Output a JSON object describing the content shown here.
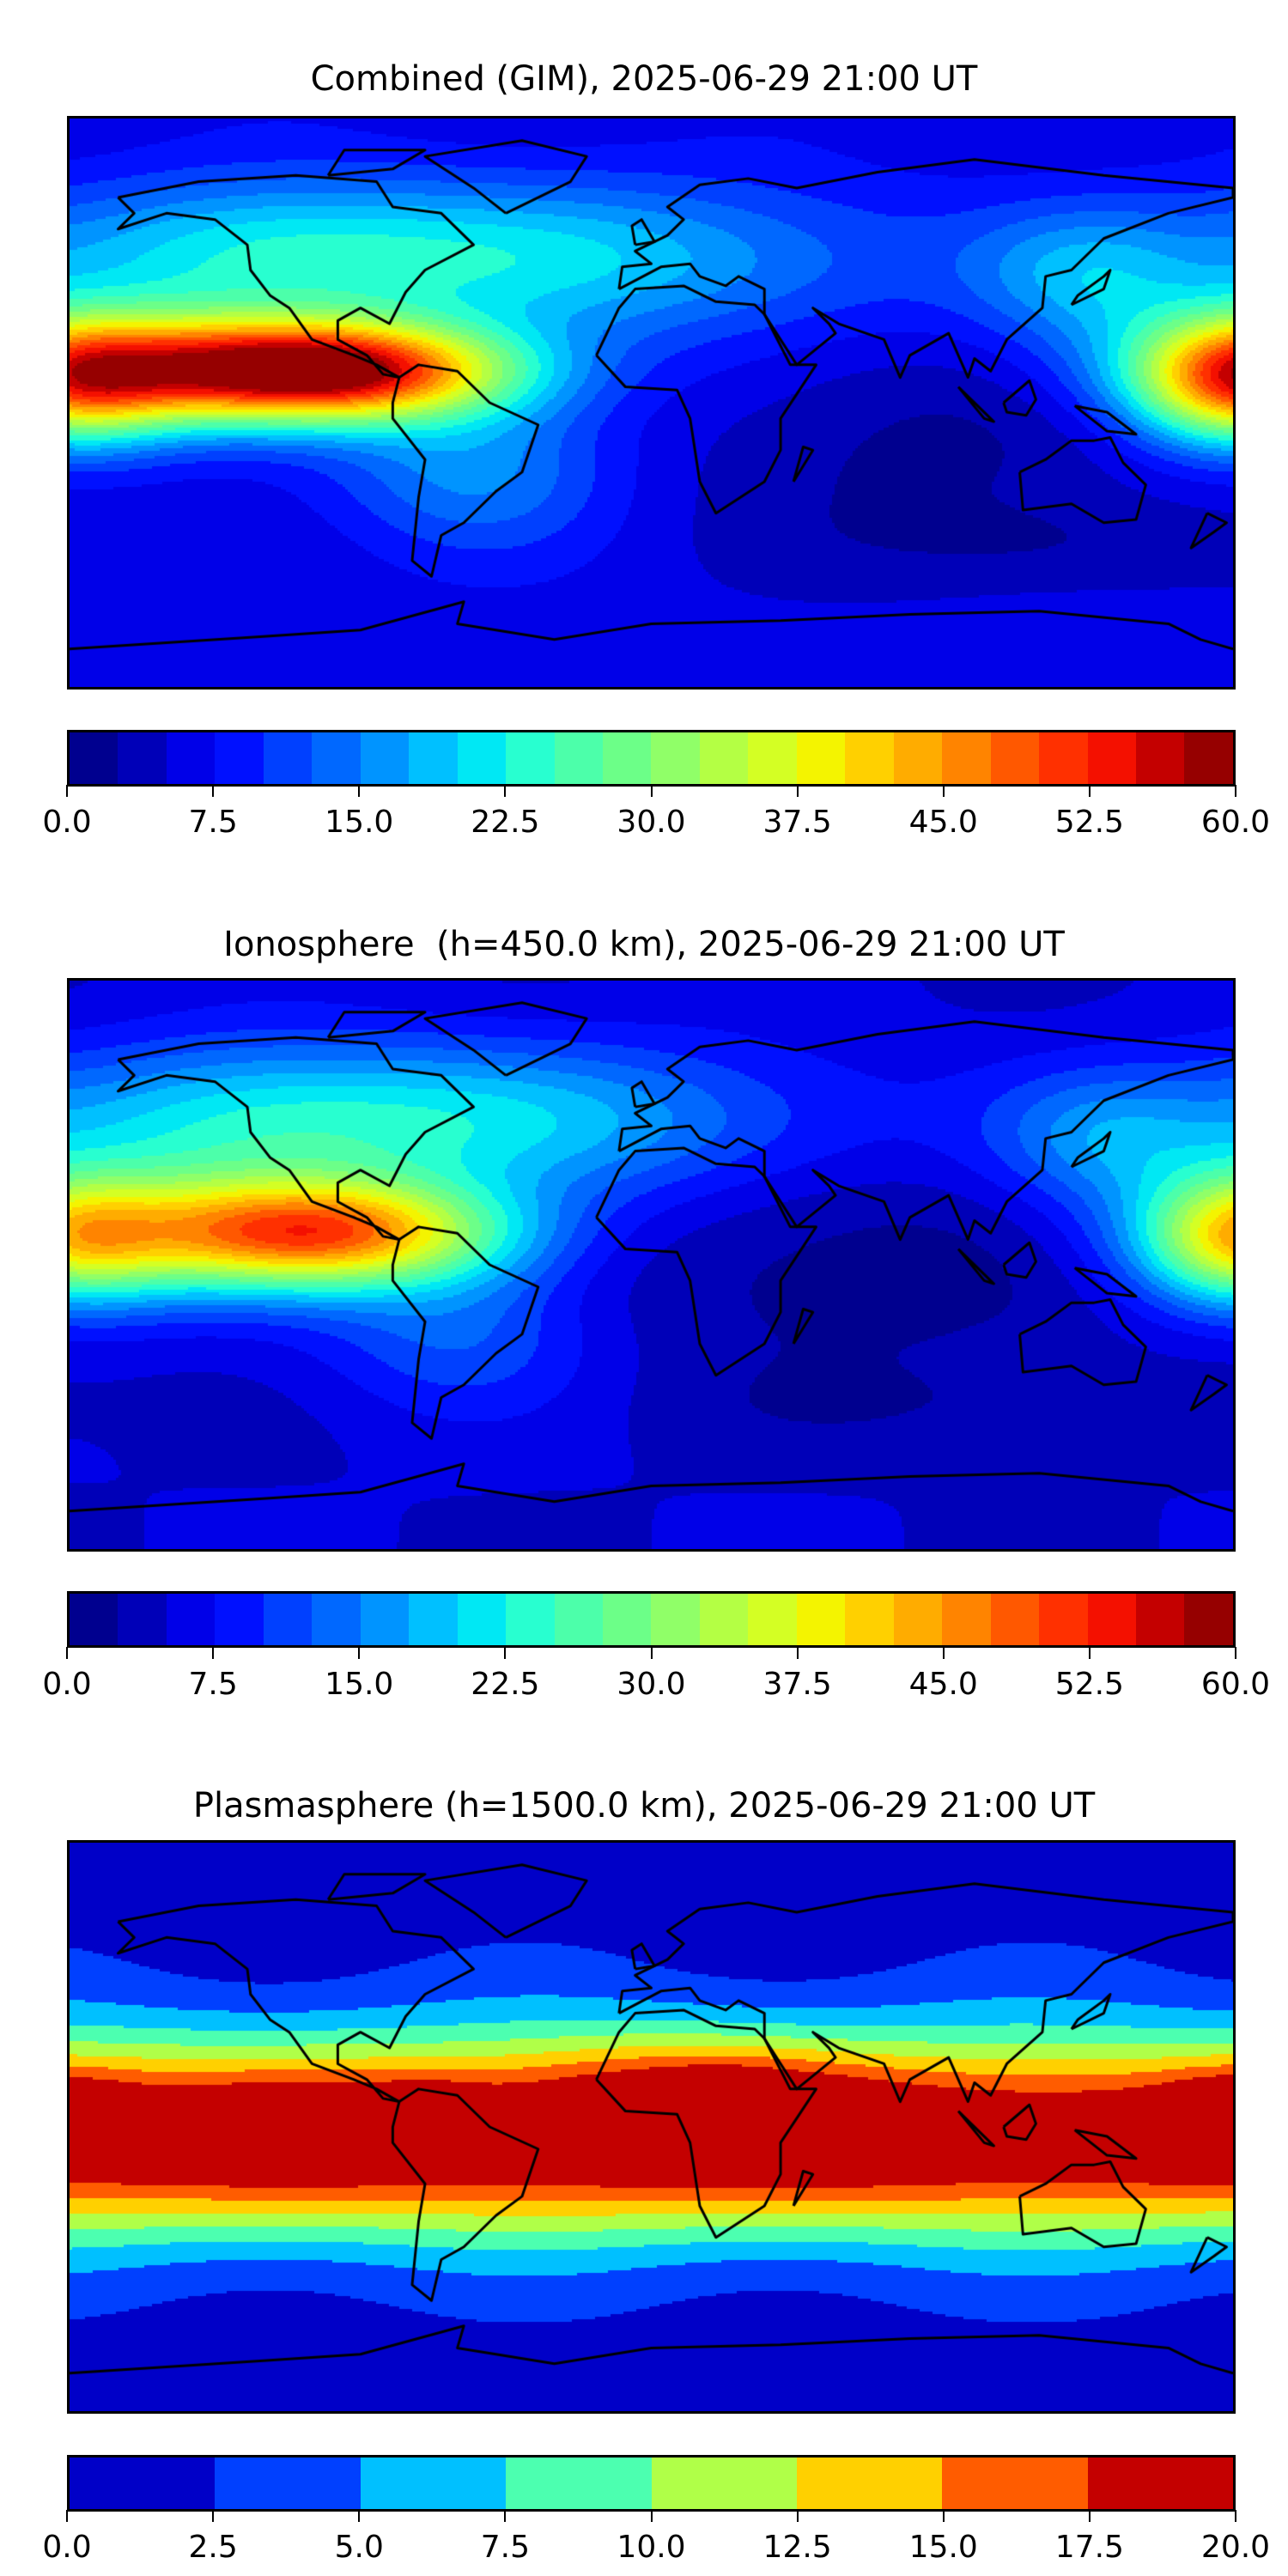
{
  "chart_data": [
    {
      "type": "heatmap",
      "projection": "plate-carree",
      "title": "Combined (GIM), 2025-06-29 21:00 UT",
      "xlim": [
        -180,
        180
      ],
      "ylim": [
        -90,
        90
      ],
      "levels_min": 0,
      "levels_max": 60,
      "level_step": 2.5,
      "colorbar_ticks": [
        "0.0",
        "7.5",
        "15.0",
        "22.5",
        "30.0",
        "37.5",
        "45.0",
        "52.5",
        "60.0"
      ],
      "colorbar_colors": [
        "#00008f",
        "#0000b8",
        "#0000e8",
        "#0010ff",
        "#0040ff",
        "#0068ff",
        "#0094ff",
        "#00c0ff",
        "#00e8f4",
        "#28ffd0",
        "#4cffaa",
        "#6cff88",
        "#90ff68",
        "#b4ff44",
        "#d4ff24",
        "#f4f400",
        "#ffd000",
        "#ffac00",
        "#ff8400",
        "#ff5800",
        "#ff3000",
        "#f41000",
        "#c40000",
        "#960000"
      ],
      "base": 6,
      "features": [
        {
          "lon": -100,
          "lat": 10,
          "value": 50,
          "slon": 40,
          "slat": 11
        },
        {
          "lon": -160,
          "lat": 12,
          "value": 22,
          "slon": 40,
          "slat": 14
        },
        {
          "lon": 180,
          "lat": 6,
          "value": 26,
          "slon": 22,
          "slat": 14
        },
        {
          "lon": -20,
          "lat": 45,
          "value": 13,
          "slon": 70,
          "slat": 18
        },
        {
          "lon": -125,
          "lat": 48,
          "value": 13,
          "slon": 50,
          "slat": 16
        },
        {
          "lon": -55,
          "lat": -20,
          "value": 10,
          "slon": 30,
          "slat": 18
        },
        {
          "lon": 135,
          "lat": 40,
          "value": 10,
          "slon": 25,
          "slat": 15
        },
        {
          "lon": 80,
          "lat": -15,
          "value": -4,
          "slon": 50,
          "slat": 25
        },
        {
          "lon": 120,
          "lat": -45,
          "value": -3,
          "slon": 40,
          "slat": 10
        }
      ]
    },
    {
      "type": "heatmap",
      "projection": "plate-carree",
      "title": "Ionosphere  (h=450.0 km), 2025-06-29 21:00 UT",
      "xlim": [
        -180,
        180
      ],
      "ylim": [
        -90,
        90
      ],
      "levels_min": 0,
      "levels_max": 60,
      "level_step": 2.5,
      "colorbar_ticks": [
        "0.0",
        "7.5",
        "15.0",
        "22.5",
        "30.0",
        "37.5",
        "45.0",
        "52.5",
        "60.0"
      ],
      "colorbar_colors": [
        "#00008f",
        "#0000b8",
        "#0000e8",
        "#0010ff",
        "#0040ff",
        "#0068ff",
        "#0094ff",
        "#00c0ff",
        "#00e8f4",
        "#28ffd0",
        "#4cffaa",
        "#6cff88",
        "#90ff68",
        "#b4ff44",
        "#d4ff24",
        "#f4f400",
        "#ffd000",
        "#ffac00",
        "#ff8400",
        "#ff5800",
        "#ff3000",
        "#f41000",
        "#c40000",
        "#960000"
      ],
      "base": 5,
      "features": [
        {
          "lon": -100,
          "lat": 10,
          "value": 38,
          "slon": 40,
          "slat": 12
        },
        {
          "lon": -160,
          "lat": 10,
          "value": 15,
          "slon": 40,
          "slat": 16
        },
        {
          "lon": 180,
          "lat": 8,
          "value": 20,
          "slon": 20,
          "slat": 14
        },
        {
          "lon": -40,
          "lat": 45,
          "value": 13,
          "slon": 70,
          "slat": 18
        },
        {
          "lon": -130,
          "lat": 45,
          "value": 12,
          "slon": 50,
          "slat": 18
        },
        {
          "lon": -60,
          "lat": -20,
          "value": 8,
          "slon": 30,
          "slat": 18
        },
        {
          "lon": 140,
          "lat": 40,
          "value": 9,
          "slon": 25,
          "slat": 15
        },
        {
          "lon": 60,
          "lat": 0,
          "value": -4,
          "slon": 60,
          "slat": 25
        },
        {
          "lon": 100,
          "lat": -45,
          "value": -2,
          "slon": 60,
          "slat": 10
        }
      ]
    },
    {
      "type": "heatmap",
      "projection": "plate-carree",
      "title": "Plasmasphere (h=1500.0 km), 2025-06-29 21:00 UT",
      "xlim": [
        -180,
        180
      ],
      "ylim": [
        -90,
        90
      ],
      "levels_min": 0,
      "levels_max": 20,
      "level_step": 2.5,
      "colorbar_ticks": [
        "0.0",
        "2.5",
        "5.0",
        "7.5",
        "10.0",
        "12.5",
        "15.0",
        "17.5",
        "20.0"
      ],
      "colorbar_colors": [
        "#0000c8",
        "#0040ff",
        "#00c0ff",
        "#4cffb0",
        "#b0ff48",
        "#ffd000",
        "#ff5c00",
        "#c40000"
      ],
      "base": 1.5,
      "features": [
        {
          "lon": 0,
          "lat": -3,
          "value": 7.2,
          "slon": 900,
          "slat": 22
        },
        {
          "lon": 15,
          "lat": 10,
          "value": 4.5,
          "slon": 35,
          "slat": 14
        },
        {
          "lon": 22,
          "lat": 13,
          "value": 1.5,
          "slon": 8,
          "slat": 4
        },
        {
          "lon": -180,
          "lat": 6,
          "value": 3.5,
          "slon": 15,
          "slat": 10
        },
        {
          "lon": -110,
          "lat": 0,
          "value": 1.5,
          "slon": 20,
          "slat": 10
        },
        {
          "lon": -70,
          "lat": 5,
          "value": 2.5,
          "slon": 12,
          "slat": 8
        }
      ]
    }
  ]
}
